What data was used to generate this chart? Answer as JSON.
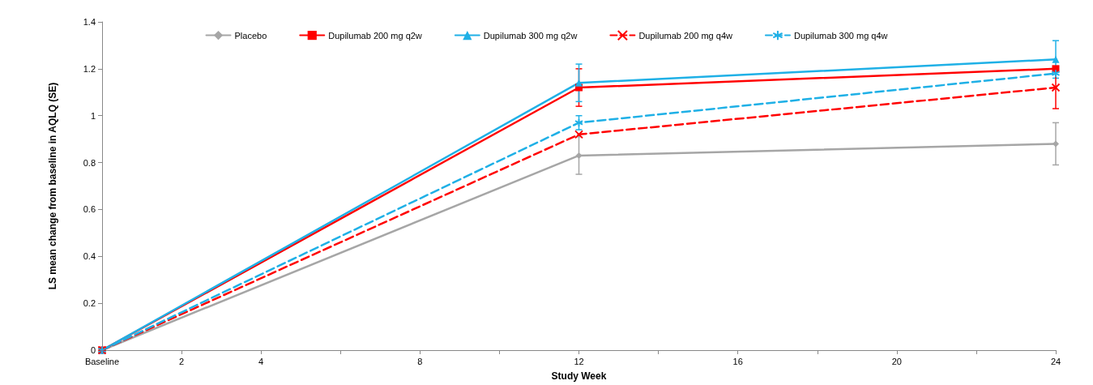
{
  "chart_data": {
    "type": "line",
    "xlabel": "Study Week",
    "ylabel": "LS mean change from baseline in AQLQ (SE)",
    "x": [
      0,
      12,
      24
    ],
    "xlim": [
      0,
      24
    ],
    "xticks": [
      {
        "value": 0,
        "label": "Baseline"
      },
      2,
      4,
      {
        "value": 6,
        "label": null
      },
      8,
      {
        "value": 10,
        "label": null
      },
      12,
      {
        "value": 14,
        "label": null
      },
      16,
      {
        "value": 18,
        "label": null
      },
      20,
      {
        "value": 22,
        "label": null
      },
      24
    ],
    "ylim": [
      0,
      1.4
    ],
    "yticks": [
      0,
      0.2,
      0.4,
      0.6,
      0.8,
      1,
      1.2,
      1.4
    ],
    "grid": false,
    "legend": "top",
    "series": [
      {
        "name": "Placebo",
        "color": "#a6a6a6",
        "marker": "diamond",
        "line_style": "solid",
        "values": [
          0,
          0.83,
          0.88
        ],
        "errors": [
          null,
          0.08,
          0.09
        ]
      },
      {
        "name": "Dupilumab 200 mg q2w",
        "color": "#ff0000",
        "marker": "square",
        "line_style": "solid",
        "values": [
          0,
          1.12,
          1.2
        ],
        "errors": [
          null,
          0.08,
          null
        ]
      },
      {
        "name": "Dupilumab 300 mg q2w",
        "color": "#1fb0e6",
        "marker": "triangle",
        "line_style": "solid",
        "values": [
          0,
          1.14,
          1.24
        ],
        "errors": [
          null,
          0.08,
          0.08
        ]
      },
      {
        "name": "Dupilumab 200 mg q4w",
        "color": "#ff0000",
        "marker": "cross",
        "line_style": "dashed",
        "values": [
          0,
          0.92,
          1.12
        ],
        "errors": [
          null,
          null,
          0.09
        ]
      },
      {
        "name": "Dupilumab 300 mg q4w",
        "color": "#1fb0e6",
        "marker": "star",
        "line_style": "dashed",
        "values": [
          0,
          0.97,
          1.18
        ],
        "errors": [
          null,
          0.03,
          null
        ]
      }
    ]
  }
}
